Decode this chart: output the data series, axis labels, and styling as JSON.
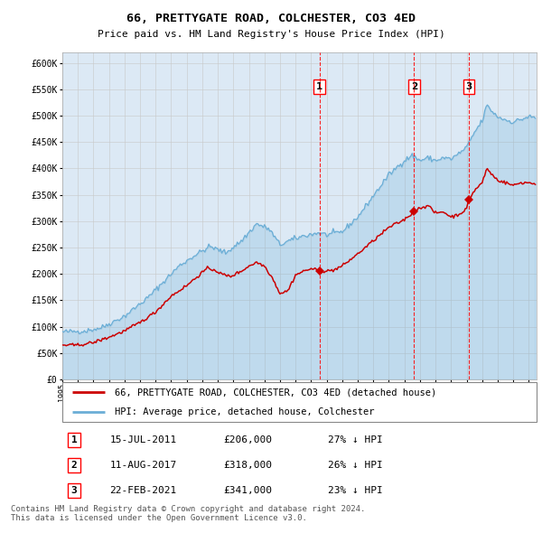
{
  "title": "66, PRETTYGATE ROAD, COLCHESTER, CO3 4ED",
  "subtitle": "Price paid vs. HM Land Registry's House Price Index (HPI)",
  "footer": "Contains HM Land Registry data © Crown copyright and database right 2024.\nThis data is licensed under the Open Government Licence v3.0.",
  "legend_line1": "66, PRETTYGATE ROAD, COLCHESTER, CO3 4ED (detached house)",
  "legend_line2": "HPI: Average price, detached house, Colchester",
  "transactions": [
    {
      "num": 1,
      "date": "15-JUL-2011",
      "price": 206000,
      "hpi_pct": "27% ↓ HPI",
      "x_year": 2011.54
    },
    {
      "num": 2,
      "date": "11-AUG-2017",
      "price": 318000,
      "hpi_pct": "26% ↓ HPI",
      "x_year": 2017.62
    },
    {
      "num": 3,
      "date": "22-FEB-2021",
      "price": 341000,
      "hpi_pct": "23% ↓ HPI",
      "x_year": 2021.15
    }
  ],
  "hpi_color": "#6baed6",
  "price_color": "#cc0000",
  "background_color": "#dce9f5",
  "ylim": [
    0,
    620000
  ],
  "xlim_start": 1995,
  "xlim_end": 2025.5,
  "yticks": [
    0,
    50000,
    100000,
    150000,
    200000,
    250000,
    300000,
    350000,
    400000,
    450000,
    500000,
    550000,
    600000
  ],
  "hpi_anchors": [
    [
      1995.0,
      90000
    ],
    [
      1996.5,
      92000
    ],
    [
      1997.5,
      98000
    ],
    [
      1999.0,
      120000
    ],
    [
      2000.5,
      155000
    ],
    [
      2001.5,
      185000
    ],
    [
      2002.5,
      215000
    ],
    [
      2003.5,
      235000
    ],
    [
      2004.5,
      252000
    ],
    [
      2005.5,
      240000
    ],
    [
      2006.5,
      262000
    ],
    [
      2007.5,
      295000
    ],
    [
      2008.3,
      285000
    ],
    [
      2009.0,
      255000
    ],
    [
      2009.5,
      262000
    ],
    [
      2010.5,
      272000
    ],
    [
      2011.5,
      278000
    ],
    [
      2012.0,
      274000
    ],
    [
      2013.0,
      280000
    ],
    [
      2014.0,
      308000
    ],
    [
      2015.0,
      348000
    ],
    [
      2016.0,
      388000
    ],
    [
      2016.8,
      410000
    ],
    [
      2017.0,
      415000
    ],
    [
      2017.5,
      425000
    ],
    [
      2018.0,
      415000
    ],
    [
      2018.5,
      420000
    ],
    [
      2019.0,
      415000
    ],
    [
      2019.5,
      420000
    ],
    [
      2020.0,
      418000
    ],
    [
      2020.5,
      428000
    ],
    [
      2021.0,
      440000
    ],
    [
      2021.5,
      468000
    ],
    [
      2022.0,
      490000
    ],
    [
      2022.3,
      520000
    ],
    [
      2022.5,
      513000
    ],
    [
      2022.8,
      503000
    ],
    [
      2023.0,
      498000
    ],
    [
      2023.5,
      492000
    ],
    [
      2024.0,
      488000
    ],
    [
      2024.5,
      493000
    ],
    [
      2025.0,
      498000
    ],
    [
      2025.4,
      496000
    ]
  ],
  "price_anchors": [
    [
      1995.0,
      65000
    ],
    [
      1996.0,
      65000
    ],
    [
      1997.0,
      70000
    ],
    [
      1998.0,
      80000
    ],
    [
      1999.0,
      92000
    ],
    [
      2000.0,
      108000
    ],
    [
      2001.0,
      128000
    ],
    [
      2002.0,
      158000
    ],
    [
      2003.0,
      178000
    ],
    [
      2003.8,
      198000
    ],
    [
      2004.3,
      210000
    ],
    [
      2004.8,
      208000
    ],
    [
      2005.2,
      200000
    ],
    [
      2005.8,
      195000
    ],
    [
      2006.5,
      205000
    ],
    [
      2007.0,
      215000
    ],
    [
      2007.5,
      222000
    ],
    [
      2008.0,
      215000
    ],
    [
      2008.5,
      193000
    ],
    [
      2009.0,
      163000
    ],
    [
      2009.5,
      168000
    ],
    [
      2010.0,
      198000
    ],
    [
      2010.5,
      205000
    ],
    [
      2011.0,
      210000
    ],
    [
      2011.54,
      206000
    ],
    [
      2012.0,
      205000
    ],
    [
      2012.5,
      208000
    ],
    [
      2013.0,
      215000
    ],
    [
      2014.0,
      238000
    ],
    [
      2015.0,
      263000
    ],
    [
      2016.0,
      288000
    ],
    [
      2017.0,
      303000
    ],
    [
      2017.5,
      315000
    ],
    [
      2017.62,
      318000
    ],
    [
      2018.0,
      325000
    ],
    [
      2018.5,
      330000
    ],
    [
      2019.0,
      315000
    ],
    [
      2019.5,
      318000
    ],
    [
      2020.0,
      308000
    ],
    [
      2020.5,
      313000
    ],
    [
      2021.0,
      323000
    ],
    [
      2021.15,
      341000
    ],
    [
      2021.5,
      358000
    ],
    [
      2022.0,
      373000
    ],
    [
      2022.3,
      400000
    ],
    [
      2022.5,
      393000
    ],
    [
      2022.8,
      383000
    ],
    [
      2023.0,
      378000
    ],
    [
      2023.5,
      373000
    ],
    [
      2024.0,
      368000
    ],
    [
      2024.5,
      373000
    ],
    [
      2025.0,
      373000
    ],
    [
      2025.4,
      371000
    ]
  ]
}
